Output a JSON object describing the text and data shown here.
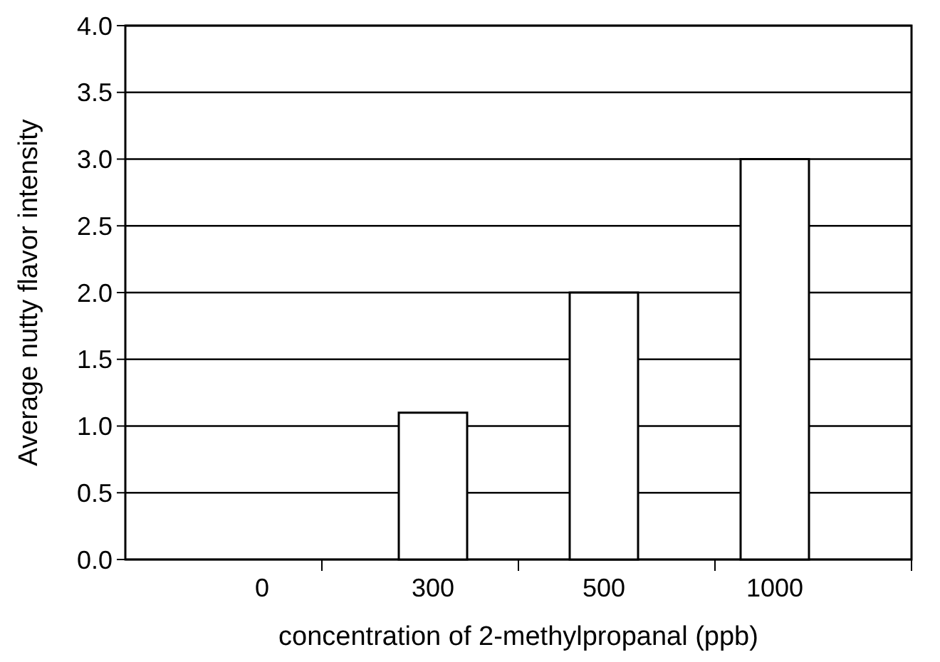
{
  "chart_data": {
    "type": "bar",
    "xlabel": "concentration of 2-methylpropanal (ppb)",
    "ylabel": "Average nutty flavor intensity",
    "categories": [
      "0",
      "300",
      "500",
      "1000"
    ],
    "values": [
      0,
      1.1,
      2.0,
      3.0
    ],
    "color": "#ffffff",
    "ylim": [
      0,
      4
    ],
    "yticks": [
      {
        "value": 0,
        "label": "0.0"
      },
      {
        "value": 0.5,
        "label": "0.5"
      },
      {
        "value": 1,
        "label": "1.0"
      },
      {
        "value": 1.5,
        "label": "1.5"
      },
      {
        "value": 2,
        "label": "2.0"
      },
      {
        "value": 2.5,
        "label": "2.5"
      },
      {
        "value": 3,
        "label": "3.0"
      },
      {
        "value": 3.5,
        "label": "3.5"
      },
      {
        "value": 4,
        "label": "4.0"
      }
    ],
    "grid": "y"
  }
}
